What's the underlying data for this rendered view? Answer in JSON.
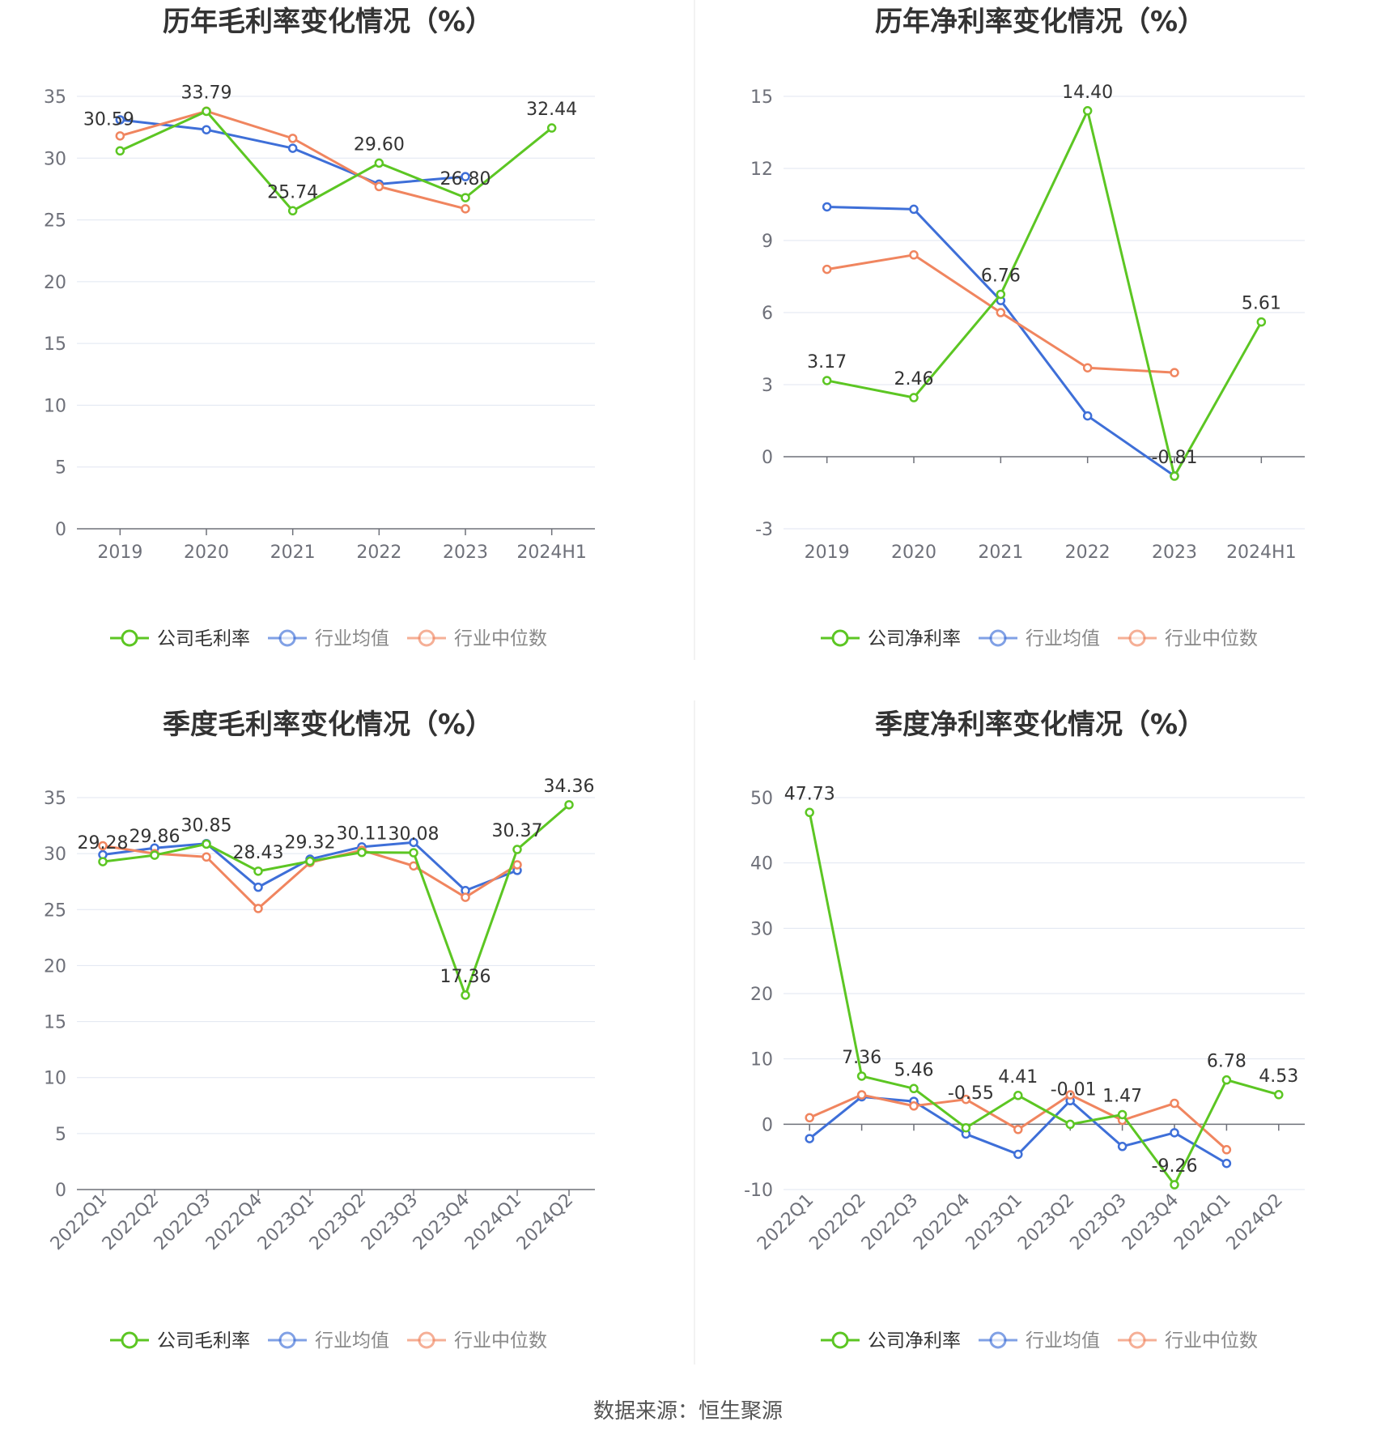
{
  "colors": {
    "company": "#5cc623",
    "industry_avg": "#3e6fd8",
    "industry_median": "#f0855f"
  },
  "source_text": "数据来源：恒生聚源",
  "chart_data": [
    {
      "type": "line",
      "title": "历年毛利率变化情况（%）",
      "categories": [
        "2019",
        "2020",
        "2021",
        "2022",
        "2023",
        "2024H1"
      ],
      "ylim": [
        0,
        35
      ],
      "yticks": [
        0,
        5,
        10,
        15,
        20,
        25,
        30,
        35
      ],
      "xlabel_rotate": false,
      "series": [
        {
          "name": "公司毛利率",
          "key": "company",
          "values": [
            30.59,
            33.79,
            25.74,
            29.6,
            26.8,
            32.44
          ],
          "labels": [
            "30.59",
            "33.79",
            "25.74",
            "29.60",
            "26.80",
            "32.44"
          ]
        },
        {
          "name": "行业均值",
          "key": "industry_avg",
          "values": [
            33.1,
            32.3,
            30.8,
            27.9,
            28.5,
            null
          ]
        },
        {
          "name": "行业中位数",
          "key": "industry_median",
          "values": [
            31.8,
            33.8,
            31.6,
            27.7,
            25.9,
            null
          ]
        }
      ]
    },
    {
      "type": "line",
      "title": "历年净利率变化情况（%）",
      "categories": [
        "2019",
        "2020",
        "2021",
        "2022",
        "2023",
        "2024H1"
      ],
      "ylim": [
        -3,
        15
      ],
      "yticks": [
        -3,
        0,
        3,
        6,
        9,
        12,
        15
      ],
      "xlabel_rotate": false,
      "series": [
        {
          "name": "公司净利率",
          "key": "company",
          "values": [
            3.17,
            2.46,
            6.76,
            14.4,
            -0.81,
            5.61
          ],
          "labels": [
            "3.17",
            "2.46",
            "6.76",
            "14.40",
            "-0.81",
            "5.61"
          ]
        },
        {
          "name": "行业均值",
          "key": "industry_avg",
          "values": [
            10.4,
            10.3,
            6.5,
            1.7,
            -0.8,
            null
          ]
        },
        {
          "name": "行业中位数",
          "key": "industry_median",
          "values": [
            7.8,
            8.4,
            6.0,
            3.7,
            3.5,
            null
          ]
        }
      ]
    },
    {
      "type": "line",
      "title": "季度毛利率变化情况（%）",
      "categories": [
        "2022Q1",
        "2022Q2",
        "2022Q3",
        "2022Q4",
        "2023Q1",
        "2023Q2",
        "2023Q3",
        "2023Q4",
        "2024Q1",
        "2024Q2"
      ],
      "ylim": [
        0,
        35
      ],
      "yticks": [
        0,
        5,
        10,
        15,
        20,
        25,
        30,
        35
      ],
      "xlabel_rotate": true,
      "series": [
        {
          "name": "公司毛利率",
          "key": "company",
          "values": [
            29.28,
            29.86,
            30.85,
            28.43,
            29.32,
            30.11,
            30.08,
            17.36,
            30.37,
            34.36
          ],
          "labels": [
            "29.28",
            "29.86",
            "30.85",
            "28.43",
            "29.32",
            "30.11",
            "30.08",
            "17.36",
            "30.37",
            "34.36"
          ]
        },
        {
          "name": "行业均值",
          "key": "industry_avg",
          "values": [
            29.9,
            30.5,
            30.9,
            27.0,
            29.5,
            30.6,
            31.0,
            26.7,
            28.5,
            null
          ]
        },
        {
          "name": "行业中位数",
          "key": "industry_median",
          "values": [
            30.7,
            30.0,
            29.7,
            25.1,
            29.2,
            30.3,
            28.9,
            26.1,
            29.0,
            null
          ]
        }
      ]
    },
    {
      "type": "line",
      "title": "季度净利率变化情况（%）",
      "categories": [
        "2022Q1",
        "2022Q2",
        "2022Q3",
        "2022Q4",
        "2023Q1",
        "2023Q2",
        "2023Q3",
        "2023Q4",
        "2024Q1",
        "2024Q2"
      ],
      "ylim": [
        -10,
        50
      ],
      "yticks": [
        -10,
        0,
        10,
        20,
        30,
        40,
        50
      ],
      "xlabel_rotate": true,
      "series": [
        {
          "name": "公司净利率",
          "key": "company",
          "values": [
            47.73,
            7.36,
            5.46,
            -0.55,
            4.41,
            -0.01,
            1.47,
            -9.26,
            6.78,
            4.53
          ],
          "labels": [
            "47.73",
            "7.36",
            "5.46",
            "-0.55",
            "4.41",
            "-0.01",
            "1.47",
            "-9.26",
            "6.78",
            "4.53"
          ]
        },
        {
          "name": "行业均值",
          "key": "industry_avg",
          "values": [
            -2.2,
            4.2,
            3.5,
            -1.5,
            -4.6,
            3.6,
            -3.4,
            -1.3,
            -6.0,
            null
          ]
        },
        {
          "name": "行业中位数",
          "key": "industry_median",
          "values": [
            1.0,
            4.5,
            2.8,
            3.8,
            -0.8,
            4.5,
            0.6,
            3.2,
            -3.9,
            null
          ]
        }
      ]
    }
  ]
}
